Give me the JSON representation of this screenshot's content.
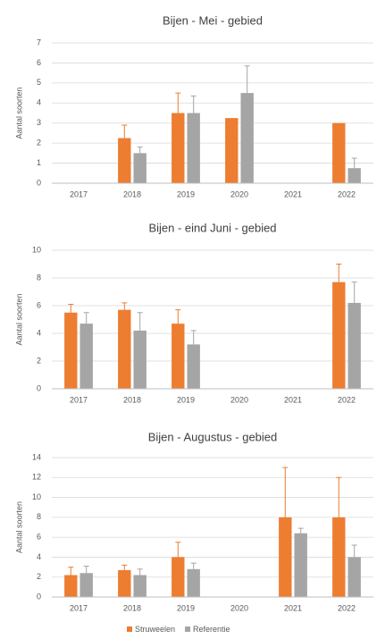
{
  "chart_data": [
    {
      "type": "bar",
      "title": "Bijen - Mei - gebied",
      "y_label": "Aantal soorten",
      "categories": [
        "2017",
        "2018",
        "2019",
        "2020",
        "2021",
        "2022"
      ],
      "series": [
        {
          "name": "Struweelen",
          "color": "#ed7d31",
          "values": [
            null,
            2.25,
            3.5,
            3.25,
            null,
            3.0
          ],
          "errors": [
            null,
            0.65,
            1.0,
            null,
            null,
            null
          ]
        },
        {
          "name": "Referentie",
          "color": "#a5a5a5",
          "values": [
            null,
            1.5,
            3.5,
            4.5,
            null,
            0.75
          ],
          "errors": [
            null,
            0.3,
            0.85,
            1.35,
            null,
            0.5
          ]
        }
      ],
      "ylim": [
        0,
        7
      ],
      "yticks": [
        0,
        1,
        2,
        3,
        4,
        5,
        6,
        7
      ],
      "grid": true
    },
    {
      "type": "bar",
      "title": "Bijen - eind Juni - gebied",
      "y_label": "Aantal soorten",
      "categories": [
        "2017",
        "2018",
        "2019",
        "2020",
        "2021",
        "2022"
      ],
      "series": [
        {
          "name": "Struweelen",
          "color": "#ed7d31",
          "values": [
            5.5,
            5.7,
            4.7,
            null,
            null,
            7.7
          ],
          "errors": [
            0.6,
            0.5,
            1.0,
            null,
            null,
            1.3
          ]
        },
        {
          "name": "Referentie",
          "color": "#a5a5a5",
          "values": [
            4.7,
            4.2,
            3.2,
            null,
            null,
            6.2
          ],
          "errors": [
            0.8,
            1.3,
            1.0,
            null,
            null,
            1.5
          ]
        }
      ],
      "ylim": [
        0,
        10
      ],
      "yticks": [
        0,
        2,
        4,
        6,
        8,
        10
      ],
      "grid": true
    },
    {
      "type": "bar",
      "title": "Bijen - Augustus - gebied",
      "y_label": "Aantal soorten",
      "categories": [
        "2017",
        "2018",
        "2019",
        "2020",
        "2021",
        "2022"
      ],
      "series": [
        {
          "name": "Struweelen",
          "color": "#ed7d31",
          "values": [
            2.2,
            2.7,
            4.0,
            null,
            8.0,
            8.0
          ],
          "errors": [
            0.8,
            0.5,
            1.5,
            null,
            5.0,
            4.0
          ]
        },
        {
          "name": "Referentie",
          "color": "#a5a5a5",
          "values": [
            2.4,
            2.2,
            2.8,
            null,
            6.4,
            4.0
          ],
          "errors": [
            0.7,
            0.6,
            0.6,
            null,
            0.5,
            1.2
          ]
        }
      ],
      "ylim": [
        0,
        14
      ],
      "yticks": [
        0,
        2,
        4,
        6,
        8,
        10,
        12,
        14
      ],
      "grid": true,
      "legend": "bottom"
    }
  ]
}
